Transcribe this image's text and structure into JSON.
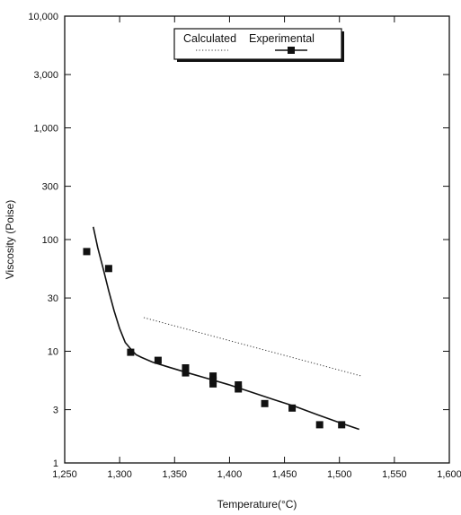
{
  "chart_data": {
    "type": "scatter",
    "xlabel": "Temperature(°C)",
    "ylabel": "Viscosity (Poise)",
    "xlim": [
      1250,
      1600
    ],
    "ylim": [
      1,
      10000
    ],
    "y_scale": "log",
    "grid": false,
    "legend_position": "top-center",
    "x_ticks": [
      {
        "value": 1250,
        "label": "1,250"
      },
      {
        "value": 1300,
        "label": "1,300"
      },
      {
        "value": 1350,
        "label": "1,350"
      },
      {
        "value": 1400,
        "label": "1,400"
      },
      {
        "value": 1450,
        "label": "1,450"
      },
      {
        "value": 1500,
        "label": "1,500"
      },
      {
        "value": 1550,
        "label": "1,550"
      },
      {
        "value": 1600,
        "label": "1,600"
      }
    ],
    "y_ticks": [
      {
        "value": 1,
        "label": "1"
      },
      {
        "value": 3,
        "label": "3"
      },
      {
        "value": 10,
        "label": "10"
      },
      {
        "value": 30,
        "label": "30"
      },
      {
        "value": 100,
        "label": "100"
      },
      {
        "value": 300,
        "label": "300"
      },
      {
        "value": 1000,
        "label": "1,000"
      },
      {
        "value": 3000,
        "label": "3,000"
      },
      {
        "value": 10000,
        "label": "10,000"
      }
    ],
    "series": [
      {
        "name": "Calculated",
        "style": "dotted",
        "color": "#333333",
        "x": [
          1322,
          1520
        ],
        "y": [
          20,
          6
        ]
      },
      {
        "name": "Experimental",
        "style": "solid-with-square-markers",
        "color": "#111111",
        "x": [
          1270,
          1290,
          1310,
          1335,
          1360,
          1360,
          1385,
          1385,
          1385,
          1408,
          1408,
          1432,
          1457,
          1482,
          1502
        ],
        "y": [
          78,
          55,
          9.8,
          8.3,
          7.1,
          6.4,
          6.0,
          5.1,
          5.5,
          5.0,
          4.6,
          3.4,
          3.1,
          2.2,
          2.2
        ],
        "fit_curve": {
          "x": [
            1276,
            1280,
            1285,
            1290,
            1295,
            1300,
            1305,
            1310,
            1315,
            1320,
            1330,
            1345,
            1360,
            1380,
            1400,
            1420,
            1440,
            1460,
            1480,
            1500,
            1518
          ],
          "y": [
            130,
            85,
            55,
            35,
            23,
            16,
            12,
            10.5,
            9.3,
            8.8,
            8.0,
            7.2,
            6.5,
            5.7,
            5.0,
            4.3,
            3.7,
            3.2,
            2.7,
            2.3,
            2.0
          ]
        }
      }
    ]
  },
  "legend": {
    "calculated_label": "Calculated",
    "experimental_label": "Experimental"
  }
}
